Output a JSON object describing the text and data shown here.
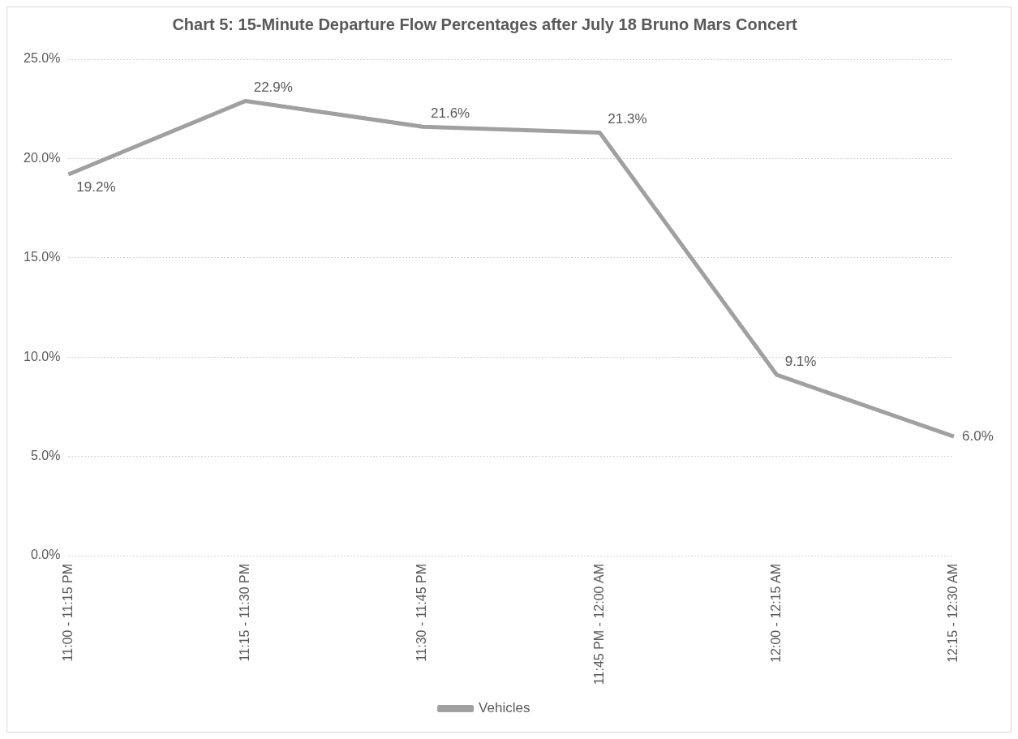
{
  "chart_data": {
    "type": "line",
    "title": "Chart 5: 15-Minute Departure Flow Percentages after July 18 Bruno Mars Concert",
    "categories": [
      "11:00 - 11:15 PM",
      "11:15 - 11:30 PM",
      "11:30 - 11:45 PM",
      "11:45 PM - 12:00 AM",
      "12:00 - 12:15 AM",
      "12:15 - 12:30 AM"
    ],
    "series": [
      {
        "name": "Vehicles",
        "color": "#a0a0a0",
        "values": [
          19.2,
          22.9,
          21.6,
          21.3,
          9.1,
          6.0
        ],
        "value_labels": [
          "19.2%",
          "22.9%",
          "21.6%",
          "21.3%",
          "9.1%",
          "6.0%"
        ]
      }
    ],
    "ylim": [
      0,
      25
    ],
    "yticks": [
      {
        "value": 0,
        "label": "0.0%"
      },
      {
        "value": 5,
        "label": "5.0%"
      },
      {
        "value": 10,
        "label": "10.0%"
      },
      {
        "value": 15,
        "label": "15.0%"
      },
      {
        "value": 20,
        "label": "20.0%"
      },
      {
        "value": 25,
        "label": "25.0%"
      }
    ],
    "grid": "y",
    "legend": "bottom",
    "marker": "none",
    "line_style": "solid"
  }
}
